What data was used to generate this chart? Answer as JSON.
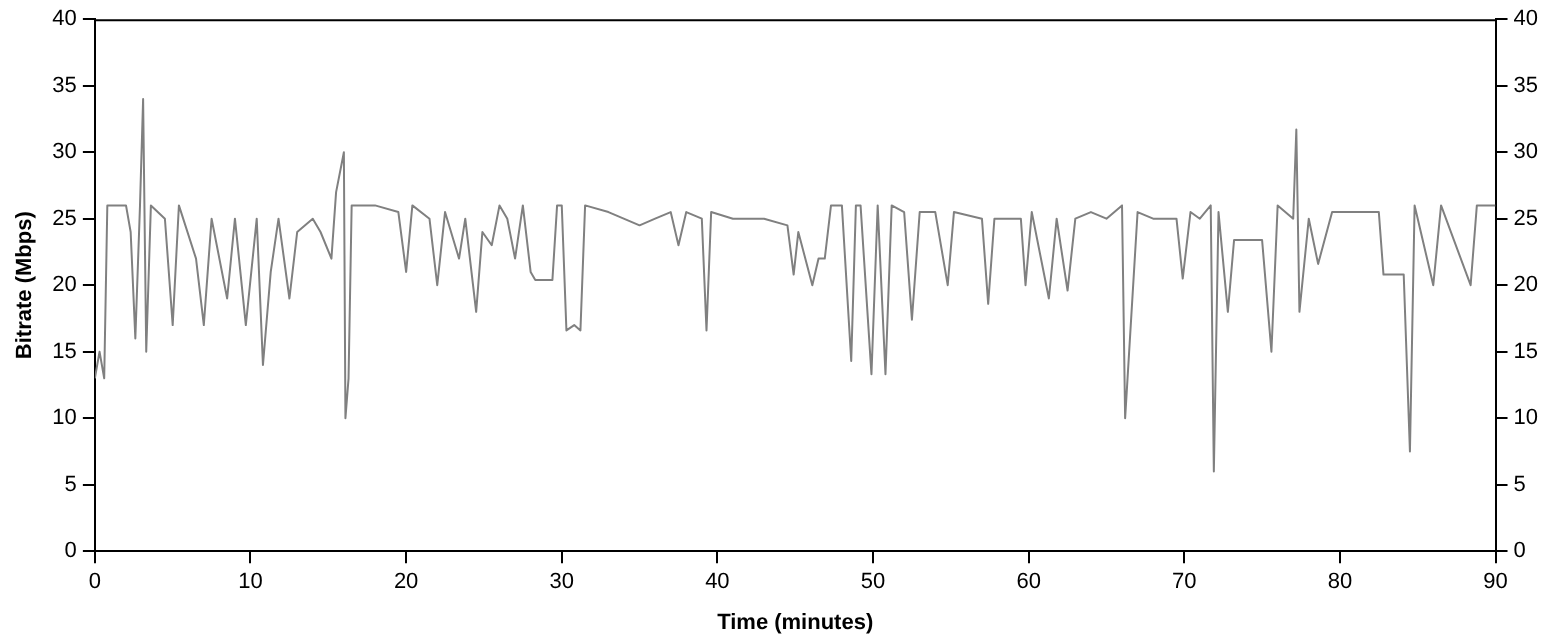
{
  "chart_data": {
    "type": "line",
    "xlabel": "Time (minutes)",
    "ylabel": "Bitrate (Mbps)",
    "xlim": [
      0,
      90
    ],
    "xticks": [
      0,
      10,
      20,
      30,
      40,
      50,
      60,
      70,
      80,
      90
    ],
    "ylim": [
      0,
      40
    ],
    "yticks": [
      0,
      5,
      10,
      15,
      20,
      25,
      30,
      35,
      40
    ],
    "y2lim": [
      0,
      40
    ],
    "y2ticks": [
      0,
      5,
      10,
      15,
      20,
      25,
      30,
      35,
      40
    ],
    "grid": false,
    "legend": false,
    "marker": "none",
    "line_style": "solid",
    "series": [
      {
        "color": "#808080",
        "x": [
          0,
          0.3,
          0.6,
          0.8,
          1.5,
          2,
          2.3,
          2.6,
          2.9,
          3.1,
          3.3,
          3.6,
          4.5,
          5,
          5.4,
          6.5,
          7,
          7.5,
          8.5,
          9,
          9.7,
          10.4,
          10.8,
          11.3,
          11.8,
          12.5,
          13,
          14,
          14.5,
          15.2,
          15.5,
          16,
          16.1,
          16.3,
          16.5,
          18,
          19.5,
          20,
          20.4,
          21.5,
          22,
          22.5,
          23.4,
          23.8,
          24.5,
          24.9,
          25.5,
          26,
          26.5,
          27,
          27.5,
          28,
          28.3,
          29.4,
          29.7,
          30,
          30.3,
          30.8,
          31.2,
          31.5,
          33,
          35,
          36,
          37,
          37.5,
          38,
          39,
          39.3,
          39.6,
          41,
          43,
          44.5,
          44.9,
          45.2,
          46.1,
          46.5,
          46.9,
          47.3,
          48,
          48.6,
          48.9,
          49.2,
          49.9,
          50.3,
          50.8,
          51.2,
          52,
          52.5,
          53,
          54,
          54.8,
          55.2,
          57,
          57.4,
          57.8,
          59.5,
          59.8,
          60.2,
          61.3,
          61.8,
          62.5,
          63,
          64,
          65,
          66,
          66.2,
          67,
          68,
          69.5,
          69.9,
          70.4,
          71,
          71.7,
          71.9,
          72.2,
          72.8,
          73.2,
          74,
          75,
          75.6,
          76,
          77,
          77.2,
          77.4,
          78,
          78.6,
          79.5,
          81,
          82.5,
          82.8,
          84.1,
          84.5,
          84.8,
          86,
          86.5,
          88.4,
          88.8,
          90
        ],
        "values": [
          13,
          15,
          13,
          26,
          26,
          26,
          24,
          16,
          26,
          34,
          15,
          26,
          25,
          17,
          26,
          22,
          17,
          25,
          19,
          25,
          17,
          25,
          14,
          21,
          25,
          19,
          24,
          25,
          24,
          22,
          27,
          30,
          10,
          13,
          26,
          26,
          25.5,
          21,
          26,
          25,
          20,
          25.5,
          22,
          25,
          18,
          24,
          23,
          26,
          25,
          22,
          26,
          21,
          20.4,
          20.4,
          26,
          26,
          16.6,
          17,
          16.6,
          26,
          25.5,
          24.5,
          25,
          25.5,
          23,
          25.5,
          25,
          16.6,
          25.5,
          25,
          25,
          24.5,
          20.8,
          24,
          20,
          22,
          22,
          26,
          26,
          14.3,
          26,
          26,
          13.3,
          26,
          13.3,
          26,
          25.5,
          17.4,
          25.5,
          25.5,
          20,
          25.5,
          25,
          18.6,
          25,
          25,
          20,
          25.5,
          19,
          25,
          19.6,
          25,
          25.5,
          25,
          26,
          10,
          25.5,
          25,
          25,
          20.5,
          25.5,
          25,
          26,
          6,
          25.5,
          18,
          23.4,
          23.4,
          23.4,
          15,
          26,
          25,
          31.7,
          18,
          25,
          21.6,
          25.5,
          25.5,
          25.5,
          20.8,
          20.8,
          7.5,
          26,
          20,
          26,
          20,
          26,
          26
        ]
      }
    ]
  }
}
